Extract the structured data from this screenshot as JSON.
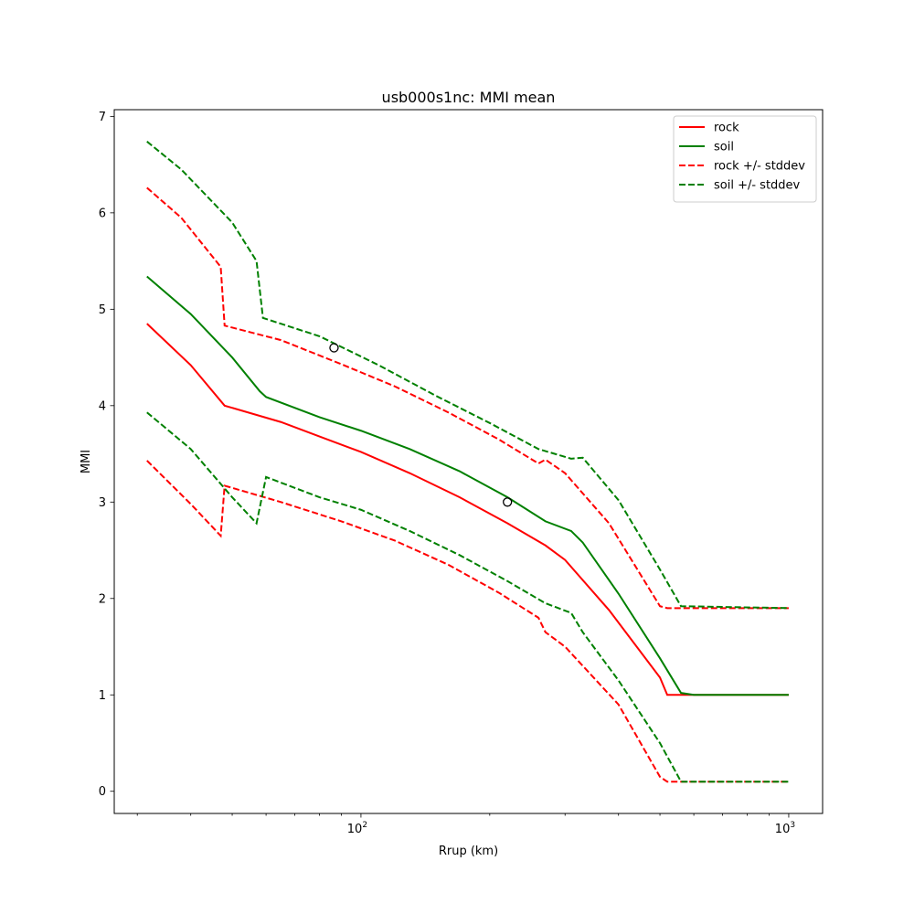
{
  "chart_data": {
    "type": "line",
    "title": "usb000s1nc: MMI mean",
    "xlabel": "Rrup (km)",
    "ylabel": "MMI",
    "xscale": "log",
    "xlim": [
      26.5,
      1200
    ],
    "ylim": [
      -0.23,
      7.07
    ],
    "xticks": [
      {
        "value": 100,
        "base": "10",
        "exp": "2"
      },
      {
        "value": 1000,
        "base": "10",
        "exp": "3"
      }
    ],
    "yticks": [
      0,
      1,
      2,
      3,
      4,
      5,
      6,
      7
    ],
    "legend": {
      "position": "top-right"
    },
    "grid": false,
    "series": [
      {
        "name": "rock",
        "color": "#ff0000",
        "dash": "solid",
        "points": [
          [
            31.6,
            4.85
          ],
          [
            40,
            4.42
          ],
          [
            48,
            4.0
          ],
          [
            65,
            3.83
          ],
          [
            80,
            3.68
          ],
          [
            100,
            3.52
          ],
          [
            130,
            3.3
          ],
          [
            170,
            3.05
          ],
          [
            220,
            2.78
          ],
          [
            270,
            2.55
          ],
          [
            300,
            2.4
          ],
          [
            380,
            1.88
          ],
          [
            500,
            1.18
          ],
          [
            520,
            1.0
          ],
          [
            600,
            1.0
          ],
          [
            1000,
            1.0
          ]
        ]
      },
      {
        "name": "soil",
        "color": "#008000",
        "dash": "solid",
        "points": [
          [
            31.6,
            5.34
          ],
          [
            40,
            4.95
          ],
          [
            50,
            4.5
          ],
          [
            58,
            4.15
          ],
          [
            60,
            4.09
          ],
          [
            80,
            3.88
          ],
          [
            100,
            3.74
          ],
          [
            130,
            3.55
          ],
          [
            170,
            3.32
          ],
          [
            220,
            3.05
          ],
          [
            270,
            2.8
          ],
          [
            310,
            2.7
          ],
          [
            330,
            2.58
          ],
          [
            400,
            2.05
          ],
          [
            500,
            1.38
          ],
          [
            560,
            1.02
          ],
          [
            600,
            1.0
          ],
          [
            1000,
            1.0
          ]
        ]
      },
      {
        "name": "rock +/- stddev",
        "color": "#ff0000",
        "dash": "dashed",
        "points": [
          [
            31.6,
            6.26
          ],
          [
            38,
            5.95
          ],
          [
            47,
            5.44
          ],
          [
            48,
            4.83
          ],
          [
            65,
            4.68
          ],
          [
            90,
            4.43
          ],
          [
            120,
            4.2
          ],
          [
            160,
            3.93
          ],
          [
            210,
            3.65
          ],
          [
            260,
            3.4
          ],
          [
            270,
            3.44
          ],
          [
            300,
            3.3
          ],
          [
            380,
            2.78
          ],
          [
            500,
            1.92
          ],
          [
            520,
            1.9
          ],
          [
            1000,
            1.9
          ]
        ]
      },
      {
        "name": "soil +/- stddev",
        "color": "#008000",
        "dash": "dashed",
        "points": [
          [
            31.6,
            6.74
          ],
          [
            38,
            6.45
          ],
          [
            50,
            5.9
          ],
          [
            57,
            5.5
          ],
          [
            59,
            4.91
          ],
          [
            80,
            4.72
          ],
          [
            110,
            4.42
          ],
          [
            150,
            4.1
          ],
          [
            200,
            3.82
          ],
          [
            260,
            3.55
          ],
          [
            310,
            3.45
          ],
          [
            330,
            3.46
          ],
          [
            400,
            3.02
          ],
          [
            500,
            2.3
          ],
          [
            560,
            1.92
          ],
          [
            1000,
            1.9
          ]
        ]
      },
      {
        "name": "",
        "color": "#ff0000",
        "dash": "dashed",
        "points": [
          [
            31.6,
            3.43
          ],
          [
            40,
            2.98
          ],
          [
            47,
            2.65
          ],
          [
            48,
            3.17
          ],
          [
            65,
            3.0
          ],
          [
            90,
            2.8
          ],
          [
            120,
            2.6
          ],
          [
            160,
            2.35
          ],
          [
            210,
            2.06
          ],
          [
            260,
            1.8
          ],
          [
            270,
            1.65
          ],
          [
            300,
            1.5
          ],
          [
            400,
            0.9
          ],
          [
            500,
            0.15
          ],
          [
            520,
            0.1
          ],
          [
            1000,
            0.1
          ]
        ]
      },
      {
        "name": "",
        "color": "#008000",
        "dash": "dashed",
        "points": [
          [
            31.6,
            3.93
          ],
          [
            40,
            3.55
          ],
          [
            50,
            3.05
          ],
          [
            57,
            2.78
          ],
          [
            60,
            3.26
          ],
          [
            80,
            3.05
          ],
          [
            100,
            2.92
          ],
          [
            130,
            2.7
          ],
          [
            170,
            2.45
          ],
          [
            220,
            2.18
          ],
          [
            270,
            1.95
          ],
          [
            310,
            1.85
          ],
          [
            330,
            1.65
          ],
          [
            400,
            1.15
          ],
          [
            500,
            0.5
          ],
          [
            560,
            0.1
          ],
          [
            1000,
            0.1
          ]
        ]
      }
    ],
    "observations": [
      [
        86.5,
        4.6
      ],
      [
        220,
        3.0
      ]
    ]
  }
}
